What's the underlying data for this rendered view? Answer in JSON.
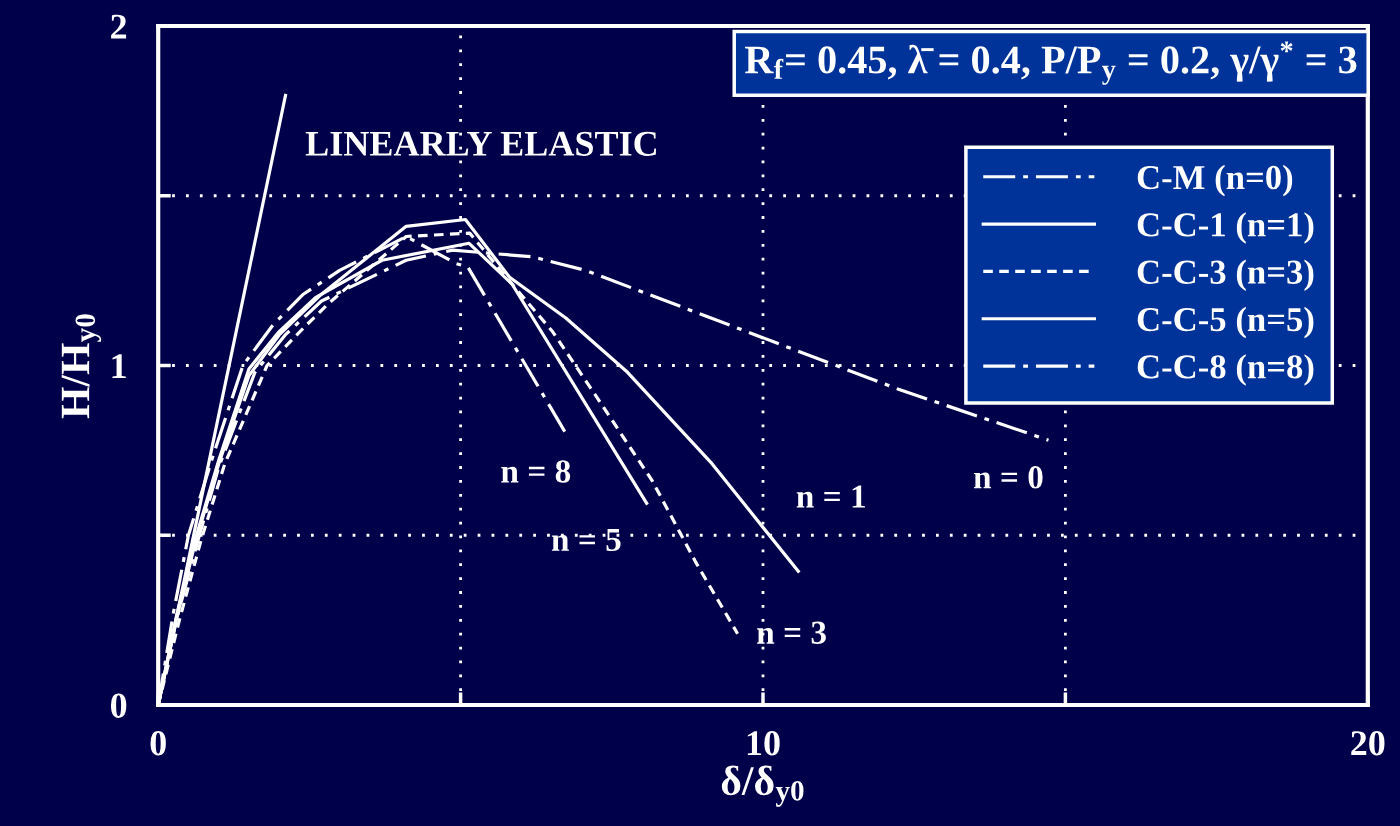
{
  "chart_data": {
    "type": "line",
    "title": "R$_{f}$= 0.45, λ̄ = 0.4, P/P$_{y}$ = 0.2, γ/γ$^{*}$ = 3",
    "xlabel": "δ/δ$_{y0}$",
    "ylabel": "H/H$_{y0}$",
    "xlim": [
      0,
      20
    ],
    "ylim": [
      0,
      2
    ],
    "xticks": [
      0,
      {
        "value": 5,
        "label": null
      },
      10,
      {
        "value": 15,
        "label": null
      },
      20
    ],
    "yticks": [
      0,
      {
        "value": 0.5,
        "label": null
      },
      1,
      {
        "value": 1.5,
        "label": null
      },
      2
    ],
    "grid": true,
    "legend": "top right",
    "series": [
      {
        "name": "C-M (n=0)",
        "color": "#ffffff",
        "line_style": "dashdot",
        "x": [
          0,
          0.3,
          0.65,
          1.0,
          1.6,
          2.1,
          2.7,
          4.1,
          4.87,
          6.19,
          7.07,
          12.24,
          14.72
        ],
        "values": [
          0,
          0.25,
          0.48,
          0.7,
          0.98,
          1.09,
          1.19,
          1.31,
          1.34,
          1.32,
          1.28,
          0.93,
          0.78
        ]
      },
      {
        "name": "C-C-1 (n=1)",
        "color": "#ffffff",
        "line_style": "solid",
        "x": [
          0,
          0.3,
          0.6,
          1.0,
          1.5,
          2.0,
          2.7,
          4.1,
          5.08,
          5.81,
          6.74,
          7.76,
          9.16,
          10.6
        ],
        "values": [
          0,
          0.25,
          0.47,
          0.71,
          0.97,
          1.09,
          1.21,
          1.41,
          1.43,
          1.26,
          1.14,
          0.98,
          0.71,
          0.39
        ]
      },
      {
        "name": "C-C-3 (n=3)",
        "color": "#ffffff",
        "line_style": "dashed",
        "x": [
          0,
          0.35,
          0.7,
          1.1,
          1.8,
          2.4,
          2.8,
          4.1,
          5.15,
          5.85,
          6.52,
          7.24,
          8.17,
          8.89,
          9.58
        ],
        "values": [
          0,
          0.25,
          0.48,
          0.71,
          1.0,
          1.11,
          1.18,
          1.38,
          1.39,
          1.24,
          1.1,
          0.91,
          0.66,
          0.42,
          0.21
        ]
      },
      {
        "name": "C-C-5 (n=5)",
        "color": "#ffffff",
        "line_style": "solid",
        "x": [
          0,
          0.3,
          0.6,
          1.0,
          1.5,
          2.0,
          2.6,
          3.7,
          5.14,
          5.85,
          8.09
        ],
        "values": [
          0,
          0.26,
          0.48,
          0.72,
          0.99,
          1.1,
          1.2,
          1.31,
          1.36,
          1.24,
          0.59
        ]
      },
      {
        "name": "C-C-8 (n=8)",
        "color": "#ffffff",
        "line_style": "dashdot",
        "x": [
          0,
          0.25,
          0.5,
          0.9,
          1.4,
          1.9,
          2.4,
          3.0,
          4.1,
          4.93,
          5.12,
          6.74
        ],
        "values": [
          0,
          0.27,
          0.5,
          0.73,
          1.0,
          1.12,
          1.21,
          1.28,
          1.38,
          1.3,
          1.29,
          0.8
        ]
      },
      {
        "color": "#ffffff",
        "line_style": "solid",
        "x": [
          0,
          2.11
        ],
        "values": [
          0,
          1.8
        ]
      }
    ],
    "annotations": [
      "LINEARLY ELASTIC",
      {
        "text": "n = 8",
        "x": 6.74,
        "y": 0.8
      },
      {
        "text": "n = 5",
        "x": 8.09,
        "y": 0.59
      },
      {
        "text": "n = 3",
        "x": 9.58,
        "y": 0.21
      },
      {
        "text": "n = 1",
        "x": 10.6,
        "y": 0.39
      },
      {
        "text": "n = 0",
        "x": 14.72,
        "y": 0.78
      }
    ]
  }
}
